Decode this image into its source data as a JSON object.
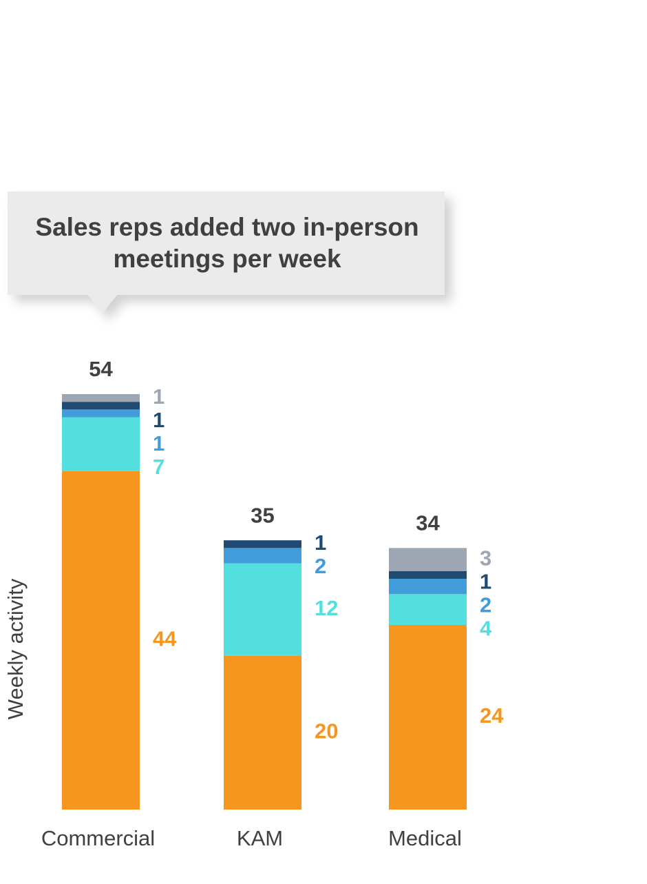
{
  "chart_data": {
    "type": "stacked-bar",
    "annotation": "Sales reps added two in-person meetings per week",
    "y_label": "Weekly activity",
    "categories": [
      "Commercial",
      "KAM",
      "Medical"
    ],
    "totals": [
      54,
      35,
      34
    ],
    "series": [
      {
        "color": "#f7961e",
        "values": [
          44,
          20,
          24
        ]
      },
      {
        "color": "#54dfdf",
        "values": [
          7,
          12,
          4
        ]
      },
      {
        "color": "#419cd9",
        "values": [
          1,
          2,
          2
        ]
      },
      {
        "color": "#1f4b73",
        "values": [
          1,
          1,
          1
        ]
      },
      {
        "color": "#9da6b3",
        "values": [
          1,
          null,
          3
        ]
      }
    ]
  }
}
